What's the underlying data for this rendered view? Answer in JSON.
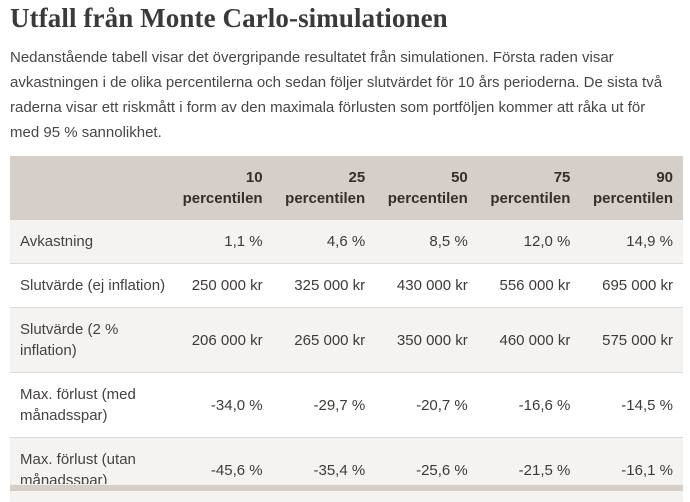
{
  "page": {
    "title": "Utfall från Monte Carlo-simulationen",
    "intro": "Nedanstående tabell visar det övergripande resultatet från simulationen. Första raden visar avkastningen i de olika percentilerna och sedan följer slutvärdet för 10 års perioderna. De sista två raderna visar ett riskmått i form av den maximala förlusten som portföljen kommer att råka ut för med 95 % sannolikhet."
  },
  "table": {
    "columns": [
      {
        "lines": [
          "10",
          "percentilen"
        ]
      },
      {
        "lines": [
          "25",
          "percentilen"
        ]
      },
      {
        "lines": [
          "50",
          "percentilen"
        ]
      },
      {
        "lines": [
          "75",
          "percentilen"
        ]
      },
      {
        "lines": [
          "90",
          "percentilen"
        ]
      }
    ],
    "rows": [
      {
        "label_lines": [
          "Avkastning"
        ],
        "values": [
          "1,1 %",
          "4,6 %",
          "8,5 %",
          "12,0 %",
          "14,9 %"
        ]
      },
      {
        "label_lines": [
          "Slutvärde (ej inflation)"
        ],
        "values": [
          "250 000 kr",
          "325 000 kr",
          "430 000 kr",
          "556 000 kr",
          "695 000 kr"
        ]
      },
      {
        "label_lines": [
          "Slutvärde (2 %",
          "inflation)"
        ],
        "values": [
          "206 000 kr",
          "265 000 kr",
          "350 000 kr",
          "460 000 kr",
          "575 000 kr"
        ]
      },
      {
        "label_lines": [
          "Max. förlust (med",
          "månadsspar)"
        ],
        "values": [
          "-34,0 %",
          "-29,7 %",
          "-20,7 %",
          "-16,6 %",
          "-14,5 %"
        ]
      },
      {
        "label_lines": [
          "Max. förlust (utan",
          "månadsspar)"
        ],
        "values": [
          "-45,6 %",
          "-35,4 %",
          "-25,6 %",
          "-21,5 %",
          "-16,1 %"
        ]
      }
    ]
  },
  "colors": {
    "header_bg": "#d6cec8",
    "row_alt_bg": "#f5f3f1",
    "row_bg": "#ffffff",
    "row_border": "#dedad7",
    "heading_text": "#3a3a3a",
    "body_text": "#474747",
    "cell_text": "#3e3b39",
    "header_text": "#332f2c"
  }
}
